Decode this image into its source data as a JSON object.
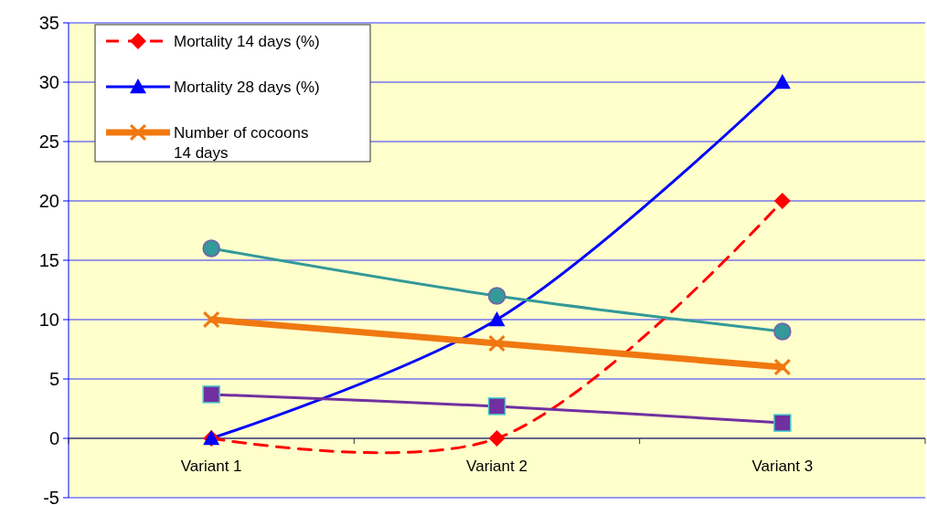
{
  "chart_data": {
    "type": "line",
    "categories": [
      "Variant 1",
      "Variant 2",
      "Variant 3"
    ],
    "series": [
      {
        "name": "Mortality 14 days (%)",
        "color": "#ff0000",
        "values": [
          0,
          0,
          20
        ],
        "marker": "diamond",
        "line_style": "dashed"
      },
      {
        "name": "Mortality 28 days (%)",
        "color": "#0000ff",
        "values": [
          0,
          10,
          30
        ],
        "marker": "triangle",
        "line_style": "solid"
      },
      {
        "name": "Number of cocoons 14 days",
        "color": "#f07810",
        "values": [
          10,
          8,
          6
        ],
        "marker": "cross",
        "line_style": "solid"
      },
      {
        "color": "#339999",
        "values": [
          16,
          12,
          9
        ],
        "marker": "circle",
        "line_style": "solid"
      },
      {
        "color": "#7030a0",
        "values": [
          3.7,
          2.7,
          1.3
        ],
        "marker": "square",
        "line_style": "solid"
      }
    ],
    "ylim": [
      -5,
      35
    ],
    "yticks": [
      -5,
      0,
      5,
      10,
      15,
      20,
      25,
      30,
      35
    ],
    "grid": "y",
    "legend": "top left"
  }
}
